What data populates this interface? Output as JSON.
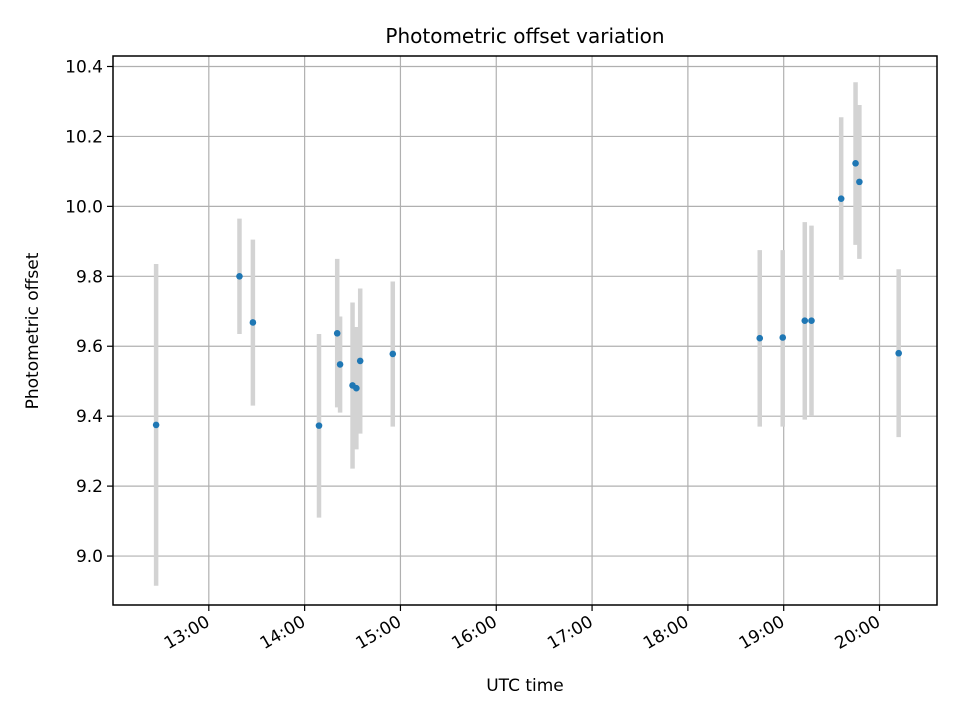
{
  "chart_data": {
    "type": "scatter",
    "title": "Photometric offset variation",
    "xlabel": "UTC time",
    "ylabel": "Photometric offset",
    "x_unit": "hours (UTC)",
    "xlim": [
      12.0,
      20.6
    ],
    "ylim": [
      8.86,
      10.43
    ],
    "grid": true,
    "x_ticks": [
      {
        "value": 13,
        "label": "13:00"
      },
      {
        "value": 14,
        "label": "14:00"
      },
      {
        "value": 15,
        "label": "15:00"
      },
      {
        "value": 16,
        "label": "16:00"
      },
      {
        "value": 17,
        "label": "17:00"
      },
      {
        "value": 18,
        "label": "18:00"
      },
      {
        "value": 19,
        "label": "19:00"
      },
      {
        "value": 20,
        "label": "20:00"
      }
    ],
    "y_ticks": [
      {
        "value": 9.0,
        "label": "9.0"
      },
      {
        "value": 9.2,
        "label": "9.2"
      },
      {
        "value": 9.4,
        "label": "9.4"
      },
      {
        "value": 9.6,
        "label": "9.6"
      },
      {
        "value": 9.8,
        "label": "9.8"
      },
      {
        "value": 10.0,
        "label": "10.0"
      },
      {
        "value": 10.2,
        "label": "10.2"
      },
      {
        "value": 10.4,
        "label": "10.4"
      }
    ],
    "colors": {
      "points": "#1f77b4",
      "errorbars": "#d3d3d3",
      "grid": "#b0b0b0"
    },
    "series": [
      {
        "name": "offset",
        "points": [
          {
            "x": 12.45,
            "y": 9.375,
            "ylow": 8.915,
            "yhigh": 9.835
          },
          {
            "x": 13.32,
            "y": 9.8,
            "ylow": 9.635,
            "yhigh": 9.965
          },
          {
            "x": 13.46,
            "y": 9.668,
            "ylow": 9.43,
            "yhigh": 9.905
          },
          {
            "x": 14.15,
            "y": 9.373,
            "ylow": 9.11,
            "yhigh": 9.635
          },
          {
            "x": 14.34,
            "y": 9.637,
            "ylow": 9.425,
            "yhigh": 9.85
          },
          {
            "x": 14.37,
            "y": 9.548,
            "ylow": 9.41,
            "yhigh": 9.685
          },
          {
            "x": 14.5,
            "y": 9.488,
            "ylow": 9.25,
            "yhigh": 9.725
          },
          {
            "x": 14.54,
            "y": 9.48,
            "ylow": 9.305,
            "yhigh": 9.655
          },
          {
            "x": 14.58,
            "y": 9.558,
            "ylow": 9.35,
            "yhigh": 9.765
          },
          {
            "x": 14.92,
            "y": 9.578,
            "ylow": 9.37,
            "yhigh": 9.785
          },
          {
            "x": 18.75,
            "y": 9.623,
            "ylow": 9.37,
            "yhigh": 9.875
          },
          {
            "x": 18.99,
            "y": 9.625,
            "ylow": 9.37,
            "yhigh": 9.875
          },
          {
            "x": 19.22,
            "y": 9.673,
            "ylow": 9.39,
            "yhigh": 9.955
          },
          {
            "x": 19.29,
            "y": 9.673,
            "ylow": 9.4,
            "yhigh": 9.945
          },
          {
            "x": 19.6,
            "y": 10.022,
            "ylow": 9.79,
            "yhigh": 10.255
          },
          {
            "x": 19.75,
            "y": 10.123,
            "ylow": 9.89,
            "yhigh": 10.355
          },
          {
            "x": 19.79,
            "y": 10.07,
            "ylow": 9.85,
            "yhigh": 10.29
          },
          {
            "x": 20.2,
            "y": 9.58,
            "ylow": 9.34,
            "yhigh": 9.82
          }
        ]
      }
    ]
  }
}
